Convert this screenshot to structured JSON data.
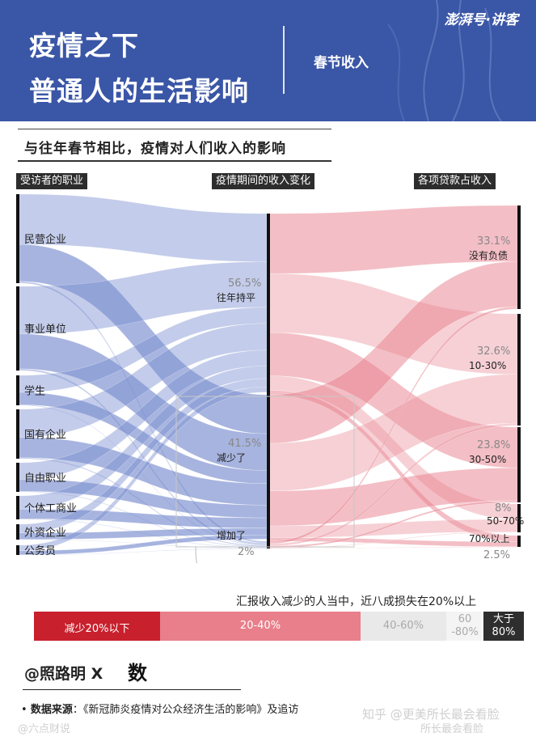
{
  "header": {
    "title_line1": "疫情之下",
    "title_line2": "普通人的生活影响",
    "section": "春节收入",
    "brand": "澎湃号·讲客"
  },
  "subtitle": "与往年春节相比，疫情对人们收入的影响",
  "columns": {
    "left": "受访者的职业",
    "middle": "疫情期间的收入变化",
    "right": "各项贷款占收入"
  },
  "chart_data": {
    "type": "sankey",
    "sources": [
      "民营企业",
      "事业单位",
      "学生",
      "国有企业",
      "自由职业",
      "个体工商业",
      "外资企业",
      "公务员"
    ],
    "income_change": [
      {
        "label": "往年持平",
        "pct": "56.5%",
        "value": 56.5
      },
      {
        "label": "减少了",
        "pct": "41.5%",
        "value": 41.5
      },
      {
        "label": "增加了",
        "pct": "2%",
        "value": 2
      }
    ],
    "loan_ratio": [
      {
        "label": "没有负债",
        "pct": "33.1%",
        "value": 33.1
      },
      {
        "label": "10-30%",
        "pct": "32.6%",
        "value": 32.6
      },
      {
        "label": "30-50%",
        "pct": "23.8%",
        "value": 23.8
      },
      {
        "label": "50-70%",
        "pct": "8%",
        "value": 8
      },
      {
        "label": "70%以上",
        "pct": "2.5%",
        "value": 2.5
      }
    ],
    "colors": {
      "left_flow": "#7b8fd0",
      "right_flow": "#e87e8c",
      "node": "#111111"
    }
  },
  "loss_note": "汇报收入减少的人当中，近八成损失在20%以上",
  "loss_bar": [
    {
      "label": "减少20%以下",
      "color": "#c8202d"
    },
    {
      "label": "20-40%",
      "color": "#e87f8b"
    },
    {
      "label": "40-60%",
      "color": "#e9e9e9"
    },
    {
      "label": "60\n-80%",
      "color": "#f4f4f4"
    },
    {
      "label": "大于\n80%",
      "color": "#2e2e2e"
    }
  ],
  "author": "@照路明 X",
  "author_logo": "数",
  "source_label": "数据来源",
  "source_text": "：《新冠肺炎疫情对公众经济生活的影响》及追访",
  "watermarks": {
    "zhihu": "知乎 @更美所长最会看脸",
    "weibo": "@六点财说",
    "corner": "所长最会看脸"
  }
}
